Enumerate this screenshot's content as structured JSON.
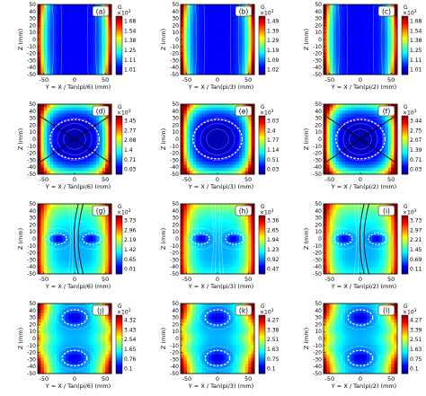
{
  "figure": {
    "z_label": "Z (mm)",
    "x_tick_labels": [
      "-50",
      "0",
      "50"
    ],
    "y_tick_labels": [
      "50",
      "40",
      "30",
      "20",
      "10",
      "0",
      "-10",
      "-20",
      "-30",
      "-40",
      "-50"
    ],
    "colorbar_unit": "G",
    "colorbar_scale": "×10",
    "colorbar_scale_exp": "3",
    "colormap": [
      "#00007f",
      "#0000ff",
      "#0080ff",
      "#00ffff",
      "#80ff80",
      "#ffff00",
      "#ff8000",
      "#ff0000",
      "#7f0000"
    ],
    "contour_color": "#ffffff",
    "separatrix_color": "#000000",
    "null_line_color": "#ffffff"
  },
  "chart_data": [
    {
      "type": "heatmap",
      "panel_label": "(a)",
      "xlabel": "Y = X / Tan(pi/6) (mm)",
      "ylabel": "Z (mm)",
      "xlim": [
        -60,
        60
      ],
      "ylim": [
        -50,
        50
      ],
      "colorbar_ticks": [
        "1.68",
        "1.54",
        "1.38",
        "1.25",
        "1.11",
        "1.01"
      ],
      "pattern": "walls"
    },
    {
      "type": "heatmap",
      "panel_label": "(b)",
      "xlabel": "Y = X / Tan(pi/3) (mm)",
      "ylabel": "Z (mm)",
      "xlim": [
        -60,
        60
      ],
      "ylim": [
        -50,
        50
      ],
      "colorbar_ticks": [
        "1.49",
        "1.39",
        "1.29",
        "1.19",
        "1.09",
        "1.02"
      ],
      "pattern": "walls"
    },
    {
      "type": "heatmap",
      "panel_label": "(c)",
      "xlabel": "Y = X / Tan(pi/2) (mm)",
      "ylabel": "Z (mm)",
      "xlim": [
        -60,
        60
      ],
      "ylim": [
        -50,
        50
      ],
      "colorbar_ticks": [
        "1.68",
        "1.54",
        "1.38",
        "1.25",
        "1.11",
        "1.01"
      ],
      "pattern": "walls"
    },
    {
      "type": "heatmap",
      "panel_label": "(d)",
      "xlabel": "Y = X / Tan(pi/6) (mm)",
      "ylabel": "Z (mm)",
      "xlim": [
        -60,
        60
      ],
      "ylim": [
        -50,
        50
      ],
      "colorbar_ticks": [
        "3.45",
        "2.77",
        "2.08",
        "1.4",
        "0.71",
        "0.03"
      ],
      "pattern": "cusp"
    },
    {
      "type": "heatmap",
      "panel_label": "(e)",
      "xlabel": "Y = X / Tan(pi/3) (mm)",
      "ylabel": "Z (mm)",
      "xlim": [
        -60,
        60
      ],
      "ylim": [
        -50,
        50
      ],
      "colorbar_ticks": [
        "3.03",
        "2.4",
        "1.77",
        "1.14",
        "0.51",
        "0.03"
      ],
      "pattern": "cusp"
    },
    {
      "type": "heatmap",
      "panel_label": "(f)",
      "xlabel": "Y = X / Tan(pi/2) (mm)",
      "ylabel": "Z (mm)",
      "xlim": [
        -60,
        60
      ],
      "ylim": [
        -50,
        50
      ],
      "colorbar_ticks": [
        "3.44",
        "2.75",
        "2.07",
        "1.39",
        "0.71",
        "0.03"
      ],
      "pattern": "cusp"
    },
    {
      "type": "heatmap",
      "panel_label": "(g)",
      "xlabel": "Y = X / Tan(pi/6) (mm)",
      "ylabel": "Z (mm)",
      "xlim": [
        -60,
        60
      ],
      "ylim": [
        -50,
        50
      ],
      "colorbar_ticks": [
        "3.73",
        "2.96",
        "2.19",
        "1.42",
        "0.65",
        "0.01"
      ],
      "pattern": "lobes"
    },
    {
      "type": "heatmap",
      "panel_label": "(h)",
      "xlabel": "Y = X / Tan(pi/3) (mm)",
      "ylabel": "Z (mm)",
      "xlim": [
        -60,
        60
      ],
      "ylim": [
        -50,
        50
      ],
      "colorbar_ticks": [
        "3.36",
        "2.65",
        "1.94",
        "1.23",
        "0.92",
        "0.47"
      ],
      "pattern": "lobes"
    },
    {
      "type": "heatmap",
      "panel_label": "(i)",
      "xlabel": "Y = X / Tan(pi/2) (mm)",
      "ylabel": "Z (mm)",
      "xlim": [
        -60,
        60
      ],
      "ylim": [
        -50,
        50
      ],
      "colorbar_ticks": [
        "3.73",
        "2.97",
        "2.21",
        "1.45",
        "0.69",
        "0.11"
      ],
      "pattern": "lobes"
    },
    {
      "type": "heatmap",
      "panel_label": "(j)",
      "xlabel": "Y = X / Tan(pi/6) (mm)",
      "ylabel": "Z (mm)",
      "xlim": [
        -60,
        60
      ],
      "ylim": [
        -50,
        50
      ],
      "colorbar_ticks": [
        "4.32",
        "3.43",
        "2.54",
        "1.65",
        "0.76",
        "0.1"
      ],
      "pattern": "rings"
    },
    {
      "type": "heatmap",
      "panel_label": "(k)",
      "xlabel": "Y = X / Tan(pi/3) (mm)",
      "ylabel": "Z (mm)",
      "xlim": [
        -60,
        60
      ],
      "ylim": [
        -50,
        50
      ],
      "colorbar_ticks": [
        "4.27",
        "3.38",
        "2.51",
        "1.63",
        "0.75",
        "0.1"
      ],
      "pattern": "rings"
    },
    {
      "type": "heatmap",
      "panel_label": "(l)",
      "xlabel": "Y = X / Tan(pi/2) (mm)",
      "ylabel": "Z (mm)",
      "xlim": [
        -60,
        60
      ],
      "ylim": [
        -50,
        50
      ],
      "colorbar_ticks": [
        "4.27",
        "3.39",
        "2.51",
        "1.63",
        "0.75",
        "0.1"
      ],
      "pattern": "rings"
    }
  ]
}
